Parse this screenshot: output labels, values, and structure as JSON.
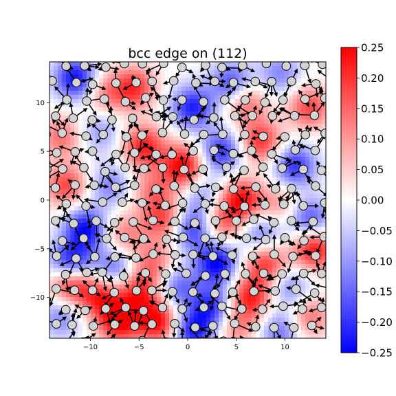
{
  "chart_data": {
    "type": "heatmap",
    "title": "bcc edge on (112)",
    "xlabel": "",
    "ylabel": "",
    "xlim": [
      -14.2,
      14.2
    ],
    "ylim": [
      -14.2,
      14.2
    ],
    "x_ticks": [
      -10,
      -5,
      0,
      5,
      10
    ],
    "y_ticks": [
      -10,
      -5,
      0,
      5,
      10
    ],
    "x_tick_labels": [
      "−10",
      "−5",
      "0",
      "5",
      "10"
    ],
    "y_tick_labels": [
      "−10",
      "−5",
      "0",
      "5",
      "10"
    ],
    "colorbar": {
      "vmin": -0.25,
      "vmax": 0.25,
      "ticks": [
        0.25,
        0.2,
        0.15,
        0.1,
        0.05,
        0.0,
        -0.05,
        -0.1,
        -0.15,
        -0.2,
        -0.25
      ],
      "tick_labels": [
        "0.25",
        "0.20",
        "0.15",
        "0.10",
        "0.05",
        "0.00",
        "−0.05",
        "−0.10",
        "−0.15",
        "−0.20",
        "−0.25"
      ],
      "colormap": "bwr",
      "colors": {
        "low": "#0000ff",
        "mid": "#ffffff",
        "high": "#ff0000"
      }
    },
    "field_peaks": [
      {
        "x": -11.5,
        "y": 12.5,
        "v": -0.24
      },
      {
        "x": -8.5,
        "y": 11.0,
        "v": 0.12
      },
      {
        "x": -5.5,
        "y": 11.5,
        "v": 0.2
      },
      {
        "x": 0.5,
        "y": 9.5,
        "v": -0.22
      },
      {
        "x": 4.5,
        "y": 12.0,
        "v": -0.18
      },
      {
        "x": 6.0,
        "y": 10.0,
        "v": 0.15
      },
      {
        "x": 9.5,
        "y": 13.0,
        "v": -0.12
      },
      {
        "x": 12.5,
        "y": 9.5,
        "v": 0.18
      },
      {
        "x": -13.0,
        "y": 6.5,
        "v": 0.14
      },
      {
        "x": -9.0,
        "y": 7.0,
        "v": -0.1
      },
      {
        "x": -4.5,
        "y": 5.5,
        "v": 0.22
      },
      {
        "x": -0.5,
        "y": 3.5,
        "v": 0.25
      },
      {
        "x": 3.5,
        "y": 5.0,
        "v": -0.2
      },
      {
        "x": 7.5,
        "y": 6.0,
        "v": 0.2
      },
      {
        "x": 11.0,
        "y": 3.5,
        "v": -0.2
      },
      {
        "x": -12.5,
        "y": 1.5,
        "v": 0.18
      },
      {
        "x": -8.0,
        "y": 1.5,
        "v": -0.12
      },
      {
        "x": -3.5,
        "y": 1.0,
        "v": 0.12
      },
      {
        "x": 1.5,
        "y": 0.5,
        "v": -0.1
      },
      {
        "x": 5.5,
        "y": 0.0,
        "v": 0.24
      },
      {
        "x": 9.5,
        "y": -0.5,
        "v": 0.1
      },
      {
        "x": 12.5,
        "y": -2.0,
        "v": -0.18
      },
      {
        "x": -10.5,
        "y": -3.0,
        "v": -0.24
      },
      {
        "x": -6.5,
        "y": -3.5,
        "v": 0.12
      },
      {
        "x": -2.5,
        "y": -2.0,
        "v": 0.18
      },
      {
        "x": 0.5,
        "y": -3.0,
        "v": -0.2
      },
      {
        "x": 3.5,
        "y": -2.5,
        "v": 0.15
      },
      {
        "x": 7.5,
        "y": -3.5,
        "v": -0.14
      },
      {
        "x": 13.0,
        "y": -5.0,
        "v": 0.24
      },
      {
        "x": -12.0,
        "y": -6.5,
        "v": -0.25
      },
      {
        "x": -12.0,
        "y": -8.5,
        "v": 0.24
      },
      {
        "x": -7.5,
        "y": -7.0,
        "v": -0.15
      },
      {
        "x": -3.5,
        "y": -6.5,
        "v": 0.14
      },
      {
        "x": 3.0,
        "y": -6.5,
        "v": -0.25
      },
      {
        "x": 8.0,
        "y": -6.5,
        "v": 0.2
      },
      {
        "x": 10.5,
        "y": -9.0,
        "v": -0.12
      },
      {
        "x": -9.0,
        "y": -10.0,
        "v": 0.2
      },
      {
        "x": -5.0,
        "y": -9.5,
        "v": 0.2
      },
      {
        "x": -1.0,
        "y": -9.0,
        "v": -0.15
      },
      {
        "x": 2.5,
        "y": -11.0,
        "v": -0.2
      },
      {
        "x": 6.5,
        "y": -10.0,
        "v": 0.22
      },
      {
        "x": 12.5,
        "y": -12.0,
        "v": 0.14
      },
      {
        "x": -7.0,
        "y": -12.5,
        "v": 0.25
      },
      {
        "x": -3.0,
        "y": -12.5,
        "v": 0.25
      },
      {
        "x": 0.5,
        "y": -13.5,
        "v": -0.22
      },
      {
        "x": 5.0,
        "y": -13.0,
        "v": 0.12
      },
      {
        "x": -13.0,
        "y": -12.0,
        "v": -0.12
      },
      {
        "x": 9.5,
        "y": -13.5,
        "v": -0.14
      }
    ],
    "atom_grid": {
      "spacing": 2.05,
      "row_offset": 1.0,
      "jitter": 0.25,
      "point_color": "#d3d3d3"
    },
    "arrow_color": "#000000"
  }
}
